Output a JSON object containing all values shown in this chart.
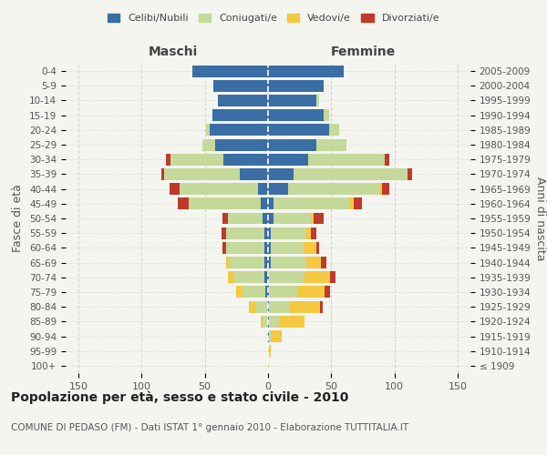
{
  "age_groups": [
    "100+",
    "95-99",
    "90-94",
    "85-89",
    "80-84",
    "75-79",
    "70-74",
    "65-69",
    "60-64",
    "55-59",
    "50-54",
    "45-49",
    "40-44",
    "35-39",
    "30-34",
    "25-29",
    "20-24",
    "15-19",
    "10-14",
    "5-9",
    "0-4"
  ],
  "birth_years": [
    "≤ 1909",
    "1910-1914",
    "1915-1919",
    "1920-1924",
    "1925-1929",
    "1930-1934",
    "1935-1939",
    "1940-1944",
    "1945-1949",
    "1950-1954",
    "1955-1959",
    "1960-1964",
    "1965-1969",
    "1970-1974",
    "1975-1979",
    "1980-1984",
    "1985-1989",
    "1990-1994",
    "1995-1999",
    "2000-2004",
    "2005-2009"
  ],
  "male": {
    "celibi": [
      0,
      0,
      0,
      0,
      0,
      2,
      3,
      3,
      3,
      3,
      4,
      6,
      8,
      22,
      35,
      42,
      46,
      44,
      40,
      43,
      60
    ],
    "coniugati": [
      0,
      0,
      1,
      4,
      10,
      18,
      24,
      28,
      30,
      30,
      28,
      57,
      62,
      60,
      42,
      10,
      3,
      0,
      0,
      0,
      0
    ],
    "vedovi": [
      0,
      0,
      0,
      2,
      5,
      5,
      5,
      2,
      0,
      0,
      0,
      0,
      0,
      0,
      0,
      0,
      0,
      0,
      0,
      0,
      0
    ],
    "divorziati": [
      0,
      0,
      0,
      0,
      0,
      0,
      0,
      0,
      3,
      4,
      4,
      8,
      8,
      2,
      4,
      0,
      0,
      0,
      0,
      0,
      0
    ]
  },
  "female": {
    "nubili": [
      0,
      0,
      1,
      1,
      1,
      1,
      1,
      2,
      2,
      2,
      4,
      4,
      16,
      20,
      32,
      38,
      48,
      44,
      38,
      44,
      60
    ],
    "coniugate": [
      0,
      0,
      2,
      8,
      16,
      22,
      28,
      28,
      26,
      28,
      30,
      60,
      72,
      90,
      60,
      24,
      8,
      4,
      2,
      0,
      0
    ],
    "vedove": [
      1,
      2,
      8,
      20,
      24,
      22,
      20,
      12,
      10,
      4,
      2,
      4,
      2,
      0,
      0,
      0,
      0,
      0,
      0,
      0,
      0
    ],
    "divorziate": [
      0,
      0,
      0,
      0,
      2,
      4,
      4,
      4,
      2,
      4,
      8,
      6,
      6,
      4,
      4,
      0,
      0,
      0,
      0,
      0,
      0
    ]
  },
  "colors": {
    "celibi": "#3A6EA5",
    "coniugati": "#C5D99A",
    "vedovi": "#F5C842",
    "divorziati": "#C0392B"
  },
  "xlim": 160,
  "title": "Popolazione per età, sesso e stato civile - 2010",
  "subtitle": "COMUNE DI PEDASO (FM) - Dati ISTAT 1° gennaio 2010 - Elaborazione TUTTITALIA.IT",
  "ylabel_left": "Fasce di età",
  "ylabel_right": "Anni di nascita",
  "xlabel_left": "Maschi",
  "xlabel_right": "Femmine",
  "bg_color": "#f5f5f0",
  "grid_color": "#cccccc"
}
